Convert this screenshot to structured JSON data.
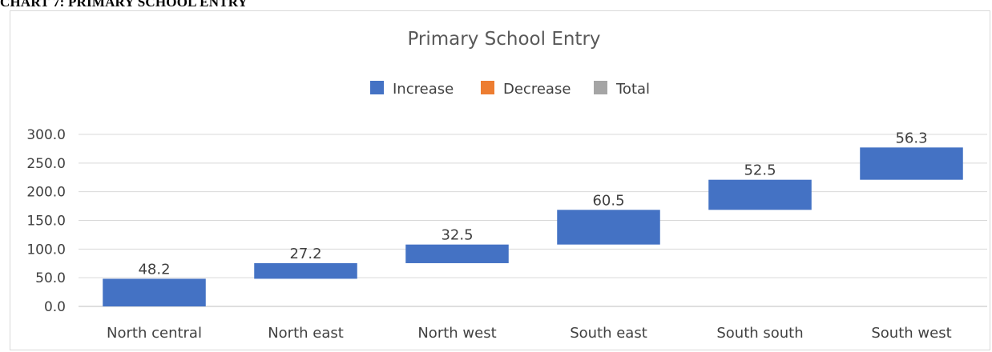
{
  "caption": "CHART 7: PRIMARY SCHOOL ENTRY",
  "chart_data": {
    "type": "waterfall",
    "title": "Primary School Entry",
    "legend": {
      "placement": "top",
      "items": [
        {
          "label": "Increase",
          "color": "#4472c4"
        },
        {
          "label": "Decrease",
          "color": "#ed7d31"
        },
        {
          "label": "Total",
          "color": "#a5a5a5"
        }
      ]
    },
    "categories": [
      "North central",
      "North east",
      "North west",
      "South east",
      "South south",
      "South west"
    ],
    "values": [
      48.2,
      27.2,
      32.5,
      60.5,
      52.5,
      56.3
    ],
    "data_labels": [
      "48.2",
      "27.2",
      "32.5",
      "60.5",
      "52.5",
      "56.3"
    ],
    "ylim": [
      0,
      300
    ],
    "yticks": [
      0,
      50,
      100,
      150,
      200,
      250,
      300
    ],
    "ytick_labels": [
      "0.0",
      "50.0",
      "100.0",
      "150.0",
      "200.0",
      "250.0",
      "300.0"
    ],
    "grid": true,
    "increase_color": "#4472c4"
  }
}
